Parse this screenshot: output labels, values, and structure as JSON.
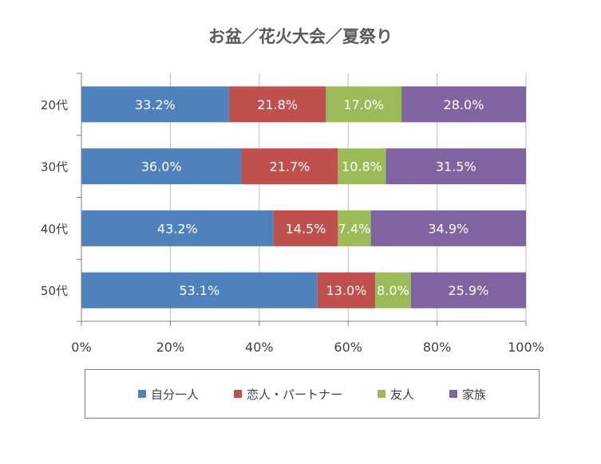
{
  "chart_data": {
    "type": "bar",
    "orientation": "horizontal",
    "stacked": "percent",
    "title": "お盆／花火大会／夏祭り",
    "categories": [
      "20代",
      "30代",
      "40代",
      "50代"
    ],
    "series": [
      {
        "name": "自分一人",
        "color": "#4f81bd",
        "values": [
          33.2,
          36.0,
          43.2,
          53.1
        ],
        "labels": [
          "33.2%",
          "36.0%",
          "43.2%",
          "53.1%"
        ]
      },
      {
        "name": "恋人・パートナー",
        "color": "#c0504d",
        "values": [
          21.8,
          21.7,
          14.5,
          13.0
        ],
        "labels": [
          "21.8%",
          "21.7%",
          "14.5%",
          "13.0%"
        ]
      },
      {
        "name": "友人",
        "color": "#9bbb59",
        "values": [
          17.0,
          10.8,
          7.4,
          8.0
        ],
        "labels": [
          "17.0%",
          "10.8%",
          "7.4%",
          "8.0%"
        ]
      },
      {
        "name": "家族",
        "color": "#8064a2",
        "values": [
          28.0,
          31.5,
          34.9,
          25.9
        ],
        "labels": [
          "28.0%",
          "31.5%",
          "34.9%",
          "25.9%"
        ]
      }
    ],
    "xlim": [
      0,
      100
    ],
    "x_ticks": [
      0,
      20,
      40,
      60,
      80,
      100
    ],
    "x_tick_labels": [
      "0%",
      "20%",
      "40%",
      "60%",
      "80%",
      "100%"
    ],
    "grid": true,
    "legend_position": "bottom"
  }
}
